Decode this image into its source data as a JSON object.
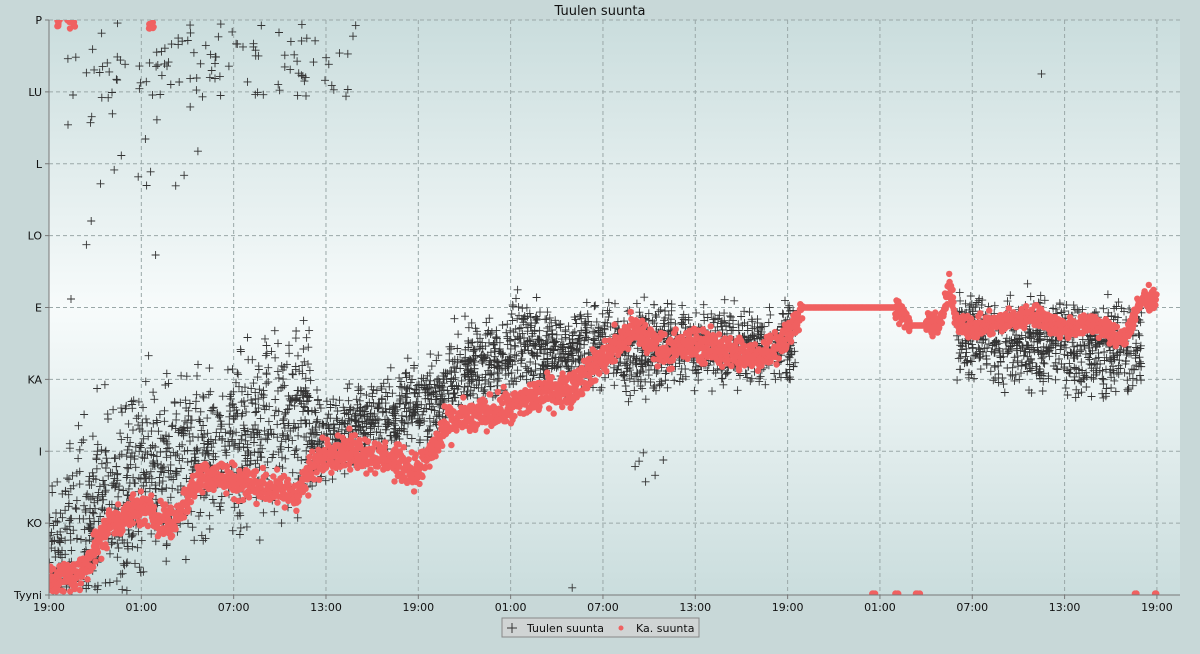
{
  "chart_data": {
    "type": "scatter",
    "title": "Tuulen suunta",
    "xlabel": "",
    "ylabel": "",
    "x_tick_labels": [
      "19:00",
      "01:00",
      "07:00",
      "13:00",
      "19:00",
      "01:00",
      "07:00",
      "13:00",
      "19:00",
      "01:00",
      "07:00",
      "13:00",
      "19:00"
    ],
    "x_tick_hours": [
      0,
      6,
      12,
      18,
      24,
      30,
      36,
      42,
      48,
      54,
      60,
      66,
      72
    ],
    "xlim_hours": [
      0,
      73.5
    ],
    "y_categories": [
      "Tyyni",
      "KO",
      "I",
      "KA",
      "E",
      "LO",
      "L",
      "LU",
      "P"
    ],
    "ylim": [
      0,
      8
    ],
    "grid": true,
    "legend_position": "bottom-center",
    "colors": {
      "raw": "#333333",
      "avg": "#f06060",
      "background_top": "#ccdede",
      "background_mid": "#f6fbfb",
      "outer": "#c8d8d8"
    },
    "series": [
      {
        "name": "Tuulen suunta",
        "marker": "plus",
        "segments": [
          {
            "x": [
              0,
              6.5
            ],
            "y": [
              0.5,
              1.8
            ],
            "spread": 1.9
          },
          {
            "x": [
              6.5,
              17
            ],
            "y": [
              1.6,
              2.6
            ],
            "spread": 1.7
          },
          {
            "x": [
              17,
              26
            ],
            "y": [
              2.1,
              2.8
            ],
            "spread": 0.8
          },
          {
            "x": [
              26,
              32
            ],
            "y": [
              3.0,
              3.6
            ],
            "spread": 0.9
          },
          {
            "x": [
              32,
              48.5
            ],
            "y": [
              3.4,
              3.5
            ],
            "spread": 0.8
          },
          {
            "x": [
              59,
              71
            ],
            "y": [
              3.6,
              3.4
            ],
            "spread": 0.9
          }
        ],
        "outliers": [
          {
            "x": [
              0.5,
              20
            ],
            "y": [
              6.9,
              8.0
            ],
            "n": 110
          },
          {
            "x": [
              1,
              10
            ],
            "y": [
              4.0,
              6.9
            ],
            "n": 20
          },
          {
            "x": [
              38,
              40
            ],
            "y": [
              1.5,
              2.0
            ],
            "n": 6
          },
          {
            "x": [
              64.5
            ],
            "y": [
              7.25
            ],
            "n": 1
          },
          {
            "x": [
              34
            ],
            "y": [
              0.1
            ],
            "n": 1
          }
        ]
      },
      {
        "name": "Ka. suunta",
        "marker": "dot",
        "path": [
          [
            0,
            0.2
          ],
          [
            2,
            0.3
          ],
          [
            4,
            1.0
          ],
          [
            6,
            1.2
          ],
          [
            8,
            1.0
          ],
          [
            10,
            1.7
          ],
          [
            12,
            1.6
          ],
          [
            14,
            1.5
          ],
          [
            16,
            1.4
          ],
          [
            18,
            2.0
          ],
          [
            20,
            2.0
          ],
          [
            22,
            1.9
          ],
          [
            24,
            1.7
          ],
          [
            26,
            2.4
          ],
          [
            28,
            2.5
          ],
          [
            30,
            2.6
          ],
          [
            32,
            2.8
          ],
          [
            34,
            2.9
          ],
          [
            36,
            3.3
          ],
          [
            38,
            3.7
          ],
          [
            40,
            3.4
          ],
          [
            42,
            3.5
          ],
          [
            44,
            3.4
          ],
          [
            46,
            3.3
          ],
          [
            48,
            3.6
          ],
          [
            49,
            4.0
          ],
          [
            55,
            4.0
          ],
          [
            56,
            3.75
          ],
          [
            57,
            3.75
          ],
          [
            58,
            3.8
          ],
          [
            58.5,
            4.3
          ],
          [
            59,
            3.8
          ],
          [
            60,
            3.7
          ],
          [
            62,
            3.8
          ],
          [
            64,
            3.9
          ],
          [
            66,
            3.7
          ],
          [
            68,
            3.8
          ],
          [
            69,
            3.6
          ],
          [
            70,
            3.6
          ],
          [
            71,
            4.1
          ],
          [
            72,
            4.15
          ]
        ],
        "stray_y": 8.0,
        "stray_x": [
          [
            0.5,
            1.7
          ],
          [
            6.5,
            6.8
          ]
        ],
        "zero_x": [
          [
            53.5,
            53.7
          ],
          [
            55,
            55.2
          ],
          [
            56.2,
            56.6
          ],
          [
            70.5,
            70.9
          ],
          [
            71.6,
            72.2
          ]
        ]
      }
    ]
  }
}
